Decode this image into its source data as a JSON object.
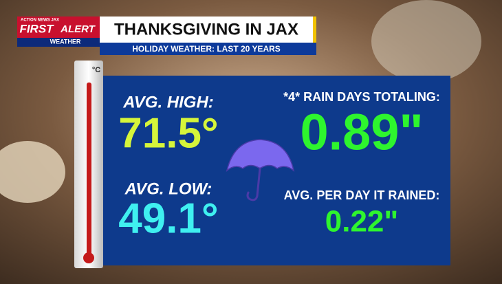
{
  "logo": {
    "station": "ACTION NEWS JAX",
    "first": "FIRST",
    "alert": "ALERT",
    "weather": "WEATHER"
  },
  "header": {
    "title": "THANKSGIVING IN JAX",
    "subtitle": "HOLIDAY WEATHER: LAST 20 YEARS"
  },
  "thermometer": {
    "unit": "°C"
  },
  "panel": {
    "high_label": "AVG. HIGH:",
    "high_value": "71.5°",
    "low_label": "AVG. LOW:",
    "low_value": "49.1°",
    "rain_label": "*4* RAIN DAYS TOTALING:",
    "rain_value": "0.89\"",
    "per_day_label": "AVG. PER DAY IT RAINED:",
    "per_day_value": "0.22\""
  }
}
